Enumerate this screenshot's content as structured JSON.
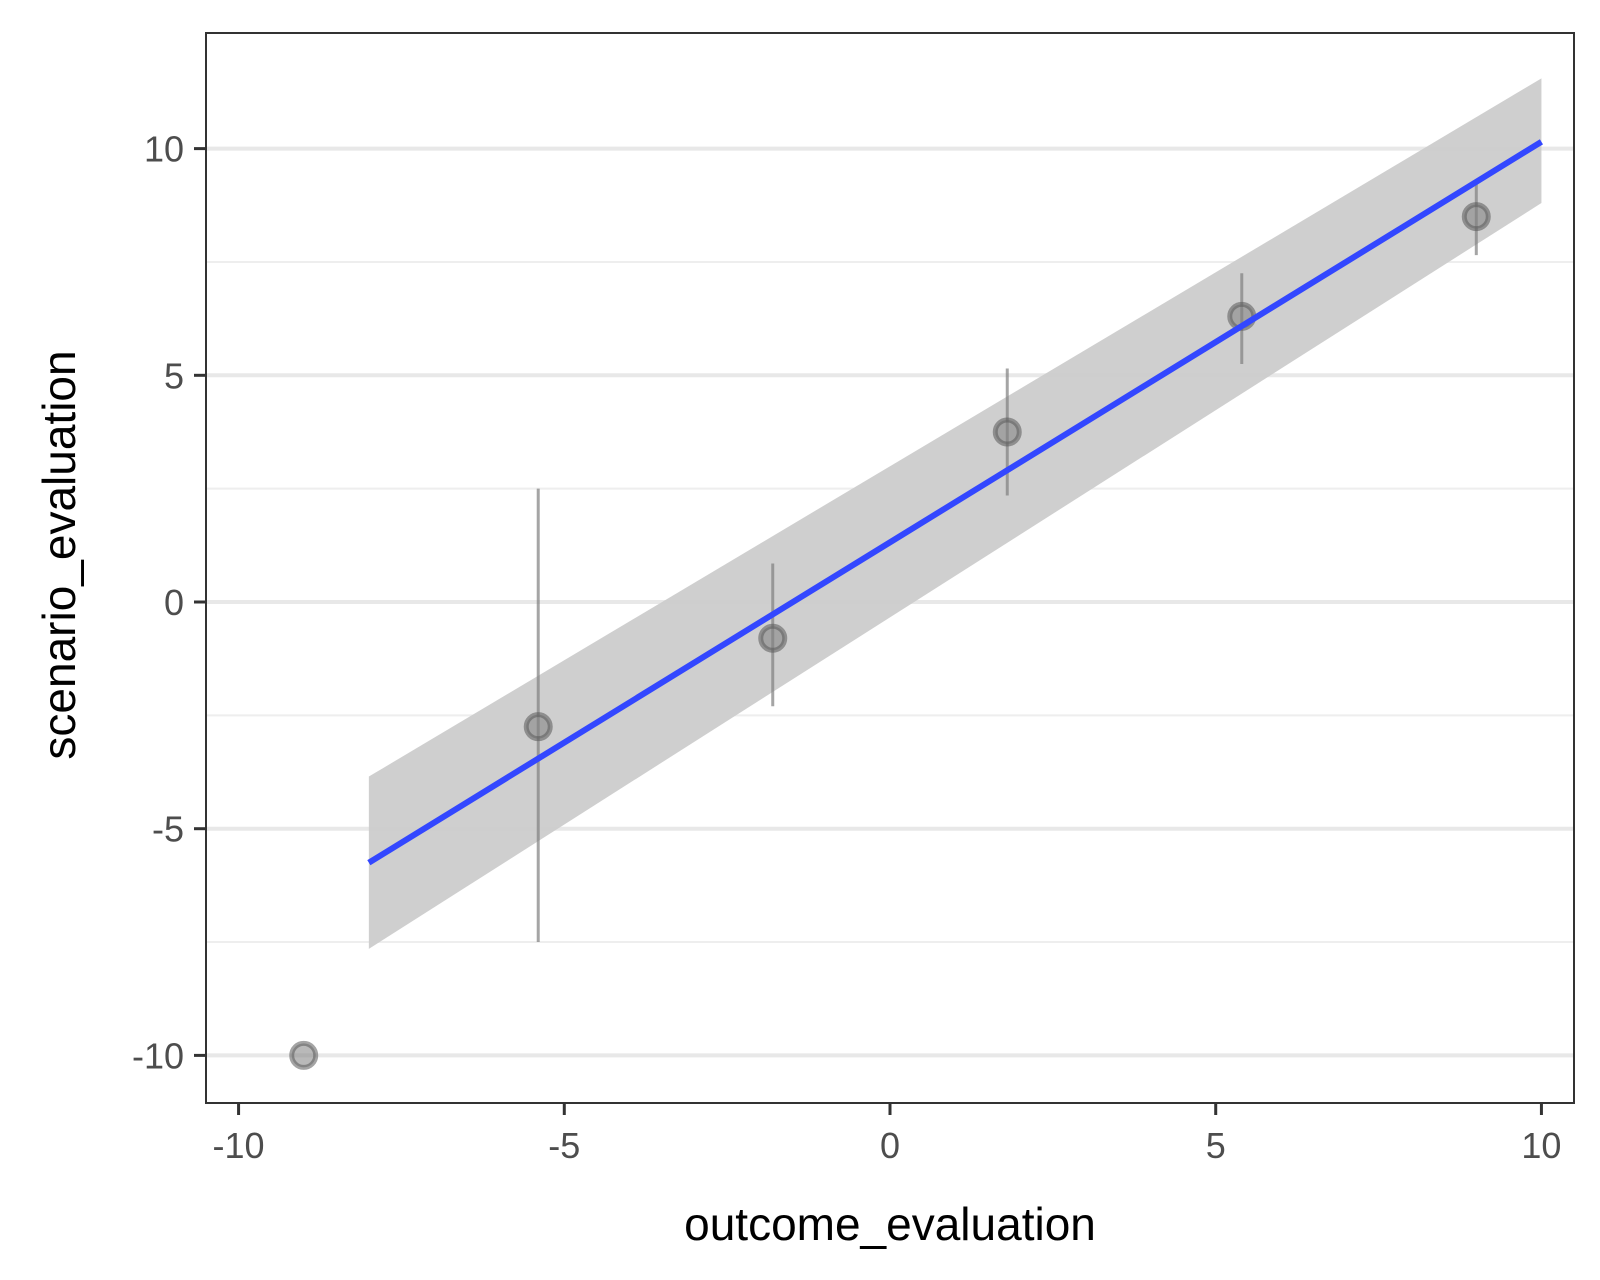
{
  "chart_data": {
    "type": "scatter",
    "title": "",
    "xlabel": "outcome_evaluation",
    "ylabel": "scenario_evaluation",
    "xlim": [
      -10.5,
      10.5
    ],
    "ylim": [
      -11.05,
      12.55
    ],
    "x_ticks": [
      -10,
      -5,
      0,
      5,
      10
    ],
    "x_tick_labels": [
      "-10",
      "-5",
      "0",
      "5",
      "10"
    ],
    "y_ticks": [
      -10,
      -5,
      0,
      5,
      10
    ],
    "y_tick_labels": [
      "-10",
      "-5",
      "0",
      "5",
      "10"
    ],
    "y_minor_gridlines": [
      -7.5,
      -2.5,
      2.5,
      7.5
    ],
    "grid": "horizontal",
    "points": {
      "name": "binned means",
      "x": [
        -9,
        -5.4,
        -1.8,
        1.8,
        5.4,
        9
      ],
      "y": [
        -10,
        -2.75,
        -0.8,
        3.75,
        6.3,
        8.5
      ],
      "ci_low": [
        -10,
        -7.5,
        -2.3,
        2.35,
        5.25,
        7.65
      ],
      "ci_high": [
        -10,
        2.5,
        0.85,
        5.15,
        7.25,
        9.25
      ],
      "color": "#808080"
    },
    "fit_line": {
      "name": "linear fit",
      "x": [
        -8,
        10
      ],
      "y": [
        -5.75,
        10.15
      ],
      "color": "#3347ff"
    },
    "confidence_band": {
      "x": [
        -8,
        10
      ],
      "lower": [
        -7.65,
        8.8
      ],
      "upper": [
        -3.85,
        11.55
      ],
      "color": "#cccccc"
    },
    "colors": {
      "panel_border": "#333333",
      "grid_major": "#e8e8e8",
      "grid_minor": "#eeeeee",
      "tick_text": "#4d4d4d"
    }
  }
}
